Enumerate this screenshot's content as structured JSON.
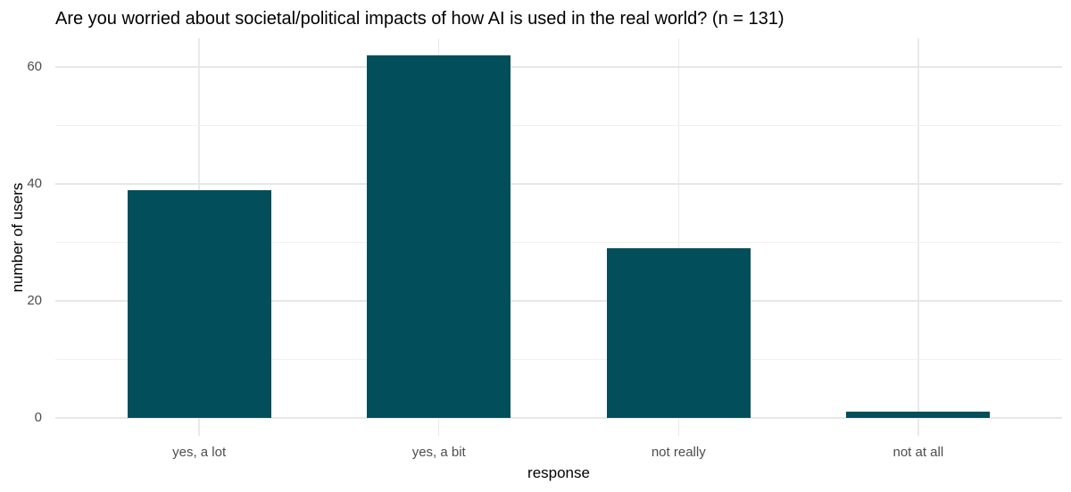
{
  "chart_data": {
    "type": "bar",
    "title": "Are you worried about societal/political impacts of how AI is used in the real world? (n = 131)",
    "xlabel": "response",
    "ylabel": "number of users",
    "categories": [
      "yes, a lot",
      "yes, a bit",
      "not really",
      "not at all"
    ],
    "values": [
      39,
      62,
      29,
      1
    ],
    "yticks_major": [
      0,
      20,
      40,
      60
    ],
    "yticks_minor": [
      10,
      30,
      50
    ],
    "ylim": [
      0,
      62
    ],
    "grid": "on",
    "legend": "none",
    "colors": {
      "bar": "#024e5a",
      "grid_major": "#e7e7e7",
      "grid_minor": "#f1f1f1",
      "tick_label": "#4d4d4d",
      "text": "#000000",
      "background": "#ffffff"
    }
  }
}
